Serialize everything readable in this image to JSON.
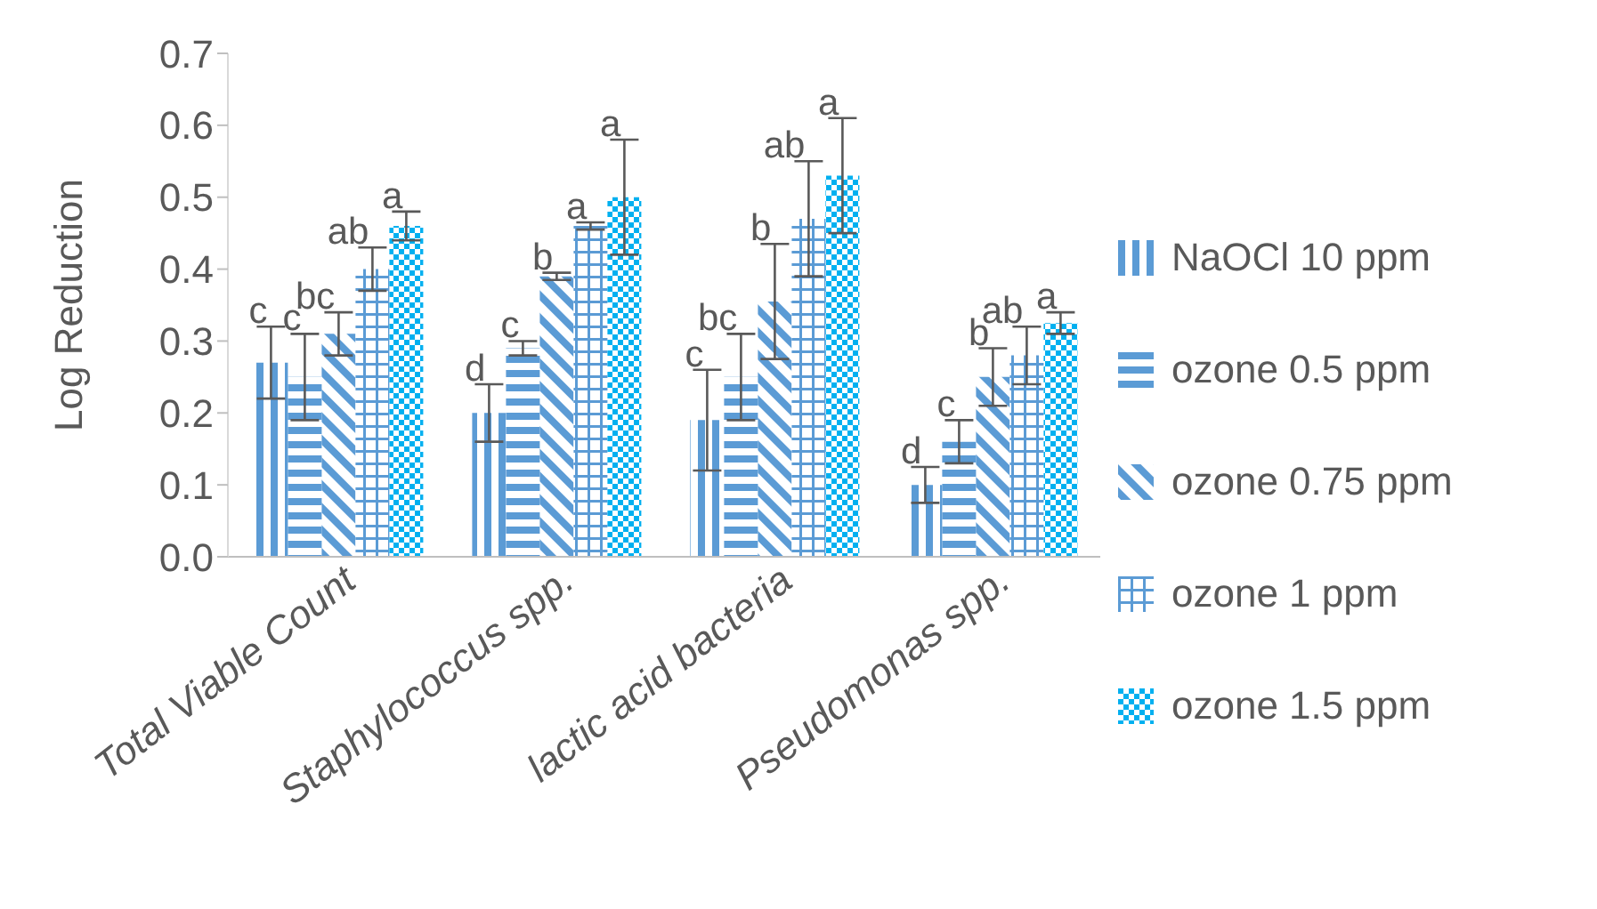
{
  "chart_data": {
    "type": "bar",
    "ylabel": "Log Reduction",
    "categories": [
      "Total Viable Count",
      "Staphylococcus spp.",
      "lactic acid bacteria",
      "Pseudomonas spp."
    ],
    "series": [
      {
        "name": "NaOCl 10 ppm",
        "color": "#5b9bd5",
        "values": [
          0.27,
          0.2,
          0.19,
          0.1
        ],
        "errors": [
          0.05,
          0.04,
          0.07,
          0.025
        ],
        "value_labels": [
          "c",
          "d",
          "c",
          "d"
        ]
      },
      {
        "name": "ozone 0.5 ppm",
        "color": "#5b9bd5",
        "values": [
          0.25,
          0.29,
          0.25,
          0.16
        ],
        "errors": [
          0.06,
          0.01,
          0.06,
          0.03
        ],
        "value_labels": [
          "c",
          "c",
          "bc",
          "c"
        ]
      },
      {
        "name": "ozone 0.75 ppm",
        "color": "#5b9bd5",
        "values": [
          0.31,
          0.39,
          0.355,
          0.25
        ],
        "errors": [
          0.03,
          0.005,
          0.08,
          0.04
        ],
        "value_labels": [
          "bc",
          "b",
          "b",
          "b"
        ]
      },
      {
        "name": "ozone 1 ppm",
        "color": "#5b9bd5",
        "values": [
          0.4,
          0.46,
          0.47,
          0.28
        ],
        "errors": [
          0.03,
          0.005,
          0.08,
          0.04
        ],
        "value_labels": [
          "ab",
          "a",
          "ab",
          "ab"
        ]
      },
      {
        "name": "ozone 1.5 ppm",
        "color": "#00b0f0",
        "values": [
          0.46,
          0.5,
          0.53,
          0.325
        ],
        "errors": [
          0.02,
          0.08,
          0.08,
          0.015
        ],
        "value_labels": [
          "a",
          "a",
          "a",
          "a"
        ]
      }
    ],
    "ylim": [
      0,
      0.7
    ],
    "yticks": [
      {
        "value": 0,
        "label": "0.0"
      },
      {
        "value": 0.1,
        "label": "0.1"
      },
      {
        "value": 0.2,
        "label": "0.2"
      },
      {
        "value": 0.3,
        "label": "0.3"
      },
      {
        "value": 0.4,
        "label": "0.4"
      },
      {
        "value": 0.5,
        "label": "0.5"
      },
      {
        "value": 0.6,
        "label": "0.6"
      },
      {
        "value": 0.7,
        "label": "0.7"
      }
    ],
    "grid": false,
    "legend": "right"
  }
}
